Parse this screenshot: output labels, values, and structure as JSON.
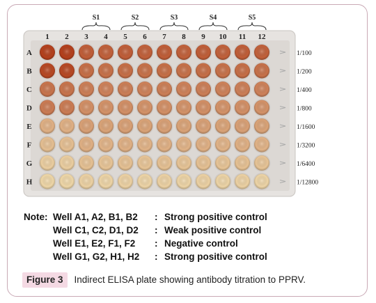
{
  "plate": {
    "columns": [
      "1",
      "2",
      "3",
      "4",
      "5",
      "6",
      "7",
      "8",
      "9",
      "10",
      "11",
      "12"
    ],
    "rows": [
      "A",
      "B",
      "C",
      "D",
      "E",
      "F",
      "G",
      "H"
    ],
    "sample_groups": [
      "S1",
      "S2",
      "S3",
      "S4",
      "S5"
    ],
    "dilutions": [
      "1/100",
      "1/200",
      "1/400",
      "1/800",
      "1/1600",
      "1/3200",
      "1/6400",
      "1/12800"
    ],
    "colors": {
      "strong": "#b5401c",
      "light": "#efd7a8",
      "plate": "#e9e6e3"
    }
  },
  "note": {
    "prefix": "Note:",
    "lines": [
      {
        "wells": "Well A1, A2, B1, B2",
        "colon": ":",
        "desc": "Strong positive control"
      },
      {
        "wells": "Well C1, C2, D1, D2",
        "colon": ":",
        "desc": "Weak positive control"
      },
      {
        "wells": "Well E1, E2, F1, F2",
        "colon": ":",
        "desc": "Negative control"
      },
      {
        "wells": "Well G1, G2, H1, H2",
        "colon": ":",
        "desc": "Strong positive control"
      }
    ]
  },
  "caption": {
    "label": "Figure 3",
    "text": "Indirect ELISA plate showing antibody titration to PPRV."
  }
}
